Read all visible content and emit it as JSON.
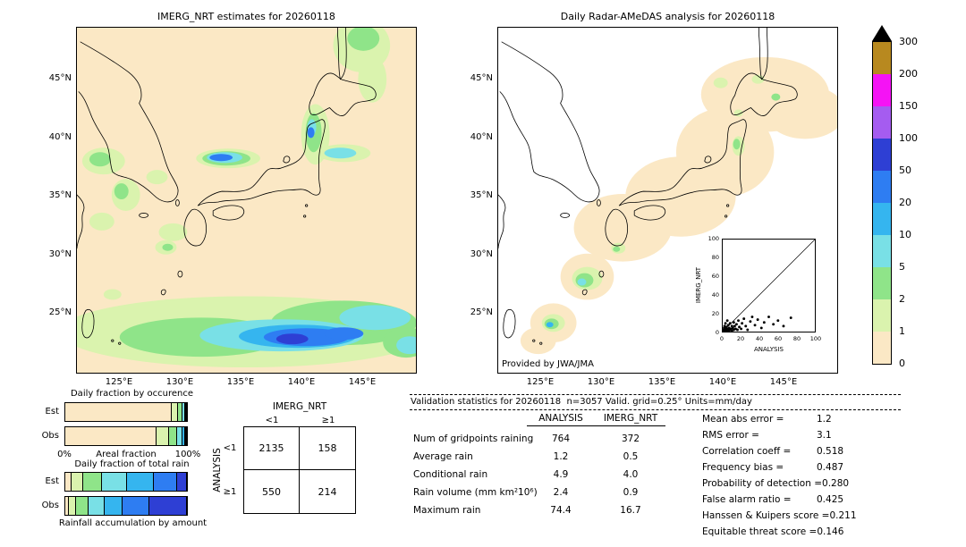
{
  "map_axes": {
    "lat_ticks": [
      "45°N",
      "40°N",
      "35°N",
      "30°N",
      "25°N"
    ],
    "lon_ticks": [
      "125°E",
      "130°E",
      "135°E",
      "140°E",
      "145°E"
    ]
  },
  "colorbar": {
    "units": "mm/day",
    "levels_top_to_bottom": [
      "300",
      "200",
      "150",
      "100",
      "50",
      "20",
      "10",
      "5",
      "2",
      "1",
      "0"
    ],
    "colors_top_to_bottom": [
      "#b8891f",
      "#f513f5",
      "#a55cf0",
      "#2e3fd4",
      "#2e7df2",
      "#35b5ef",
      "#79e0e6",
      "#8fe489",
      "#daf3ae",
      "#fbe8c5"
    ],
    "overflow_color": "#000000"
  },
  "chart_data": [
    {
      "id": "occurrence_fraction",
      "type": "bar",
      "orientation": "horizontal_stacked",
      "title": "Daily fraction by occurence",
      "xlabel": "Areal fraction",
      "x_ticks": [
        "0%",
        "100%"
      ],
      "xlim": [
        0,
        100
      ],
      "bin_labels": [
        "0-1",
        "1-2",
        "2-5",
        "5-10",
        "10-20",
        "20-50",
        ">50"
      ],
      "bin_colors": [
        "#fbe8c5",
        "#daf3ae",
        "#8fe489",
        "#79e0e6",
        "#35b5ef",
        "#2e7df2",
        "#2e3fd4"
      ],
      "rows": [
        {
          "label": "Est",
          "values": [
            87.8,
            5.0,
            3.5,
            2.0,
            1.0,
            0.5,
            0.2
          ]
        },
        {
          "label": "Obs",
          "values": [
            75.0,
            10.0,
            7.0,
            4.0,
            2.2,
            1.3,
            0.5
          ]
        }
      ]
    },
    {
      "id": "total_rain_fraction",
      "type": "bar",
      "orientation": "horizontal_stacked",
      "title": "Daily fraction of total rain",
      "xlabel": "Rainfall accumulation by amount",
      "xlim": [
        0,
        100
      ],
      "bin_labels": [
        "0-1",
        "1-2",
        "2-5",
        "5-10",
        "10-20",
        "20-50",
        ">50"
      ],
      "bin_colors": [
        "#fbe8c5",
        "#daf3ae",
        "#8fe489",
        "#79e0e6",
        "#35b5ef",
        "#2e7df2",
        "#2e3fd4"
      ],
      "rows": [
        {
          "label": "Est",
          "values": [
            5,
            10,
            15,
            21,
            22,
            19,
            8
          ]
        },
        {
          "label": "Obs",
          "values": [
            3,
            6,
            10,
            13,
            15,
            22,
            31
          ]
        }
      ]
    },
    {
      "id": "contingency_table",
      "type": "table",
      "col_axis": "IMERG_NRT",
      "row_axis": "ANALYSIS",
      "col_headers": [
        "<1",
        "≥1"
      ],
      "row_headers": [
        "<1",
        "≥1"
      ],
      "cells": [
        [
          "2135",
          "158"
        ],
        [
          "550",
          "214"
        ]
      ]
    },
    {
      "id": "validation_statistics",
      "type": "table",
      "title": "Validation statistics for 20260118  n=3057 Valid. grid=0.25° Units=mm/day",
      "columns": [
        "ANALYSIS",
        "IMERG_NRT"
      ],
      "rows": [
        {
          "label": "Num of gridpoints raining",
          "values": [
            "764",
            "372"
          ]
        },
        {
          "label": "Average rain",
          "values": [
            "1.2",
            "0.5"
          ]
        },
        {
          "label": "Conditional rain",
          "values": [
            "4.9",
            "4.0"
          ]
        },
        {
          "label": "Rain volume (mm km²10⁶)",
          "values": [
            "2.4",
            "0.9"
          ]
        },
        {
          "label": "Maximum rain",
          "values": [
            "74.4",
            "16.7"
          ]
        }
      ],
      "stats": [
        {
          "label": "Mean abs error =",
          "value": "1.2"
        },
        {
          "label": "RMS error =",
          "value": "3.1"
        },
        {
          "label": "Correlation coeff =",
          "value": "0.518"
        },
        {
          "label": "Frequency bias =",
          "value": "0.487"
        },
        {
          "label": "Probability of detection =",
          "value": "0.280"
        },
        {
          "label": "False alarm ratio =",
          "value": "0.425"
        },
        {
          "label": "Hanssen & Kuipers score =",
          "value": "0.211"
        },
        {
          "label": "Equitable threat score =",
          "value": "0.146"
        }
      ]
    },
    {
      "id": "scatter_inset",
      "type": "scatter",
      "xlabel": "ANALYSIS",
      "ylabel": "IMERG_NRT",
      "xlim": [
        0,
        100
      ],
      "ylim": [
        0,
        100
      ],
      "tick_labels": [
        "0",
        "20",
        "40",
        "60",
        "80",
        "100"
      ],
      "points": [
        [
          0.5,
          0.3
        ],
        [
          0.5,
          1.5
        ],
        [
          1,
          0.2
        ],
        [
          1,
          0.6
        ],
        [
          1,
          2
        ],
        [
          1.5,
          4
        ],
        [
          1.8,
          0.9
        ],
        [
          2,
          0.5
        ],
        [
          2,
          1.5
        ],
        [
          2,
          3.5
        ],
        [
          2,
          6
        ],
        [
          2.5,
          2
        ],
        [
          3,
          1
        ],
        [
          3,
          3
        ],
        [
          3,
          9
        ],
        [
          3.5,
          0.6
        ],
        [
          4,
          0.5
        ],
        [
          4,
          2
        ],
        [
          4,
          3.5
        ],
        [
          4,
          5
        ],
        [
          5,
          0.4
        ],
        [
          5,
          1
        ],
        [
          5,
          3
        ],
        [
          5,
          12
        ],
        [
          6,
          1
        ],
        [
          6,
          2
        ],
        [
          6,
          7
        ],
        [
          7,
          1
        ],
        [
          7,
          4
        ],
        [
          8,
          2
        ],
        [
          8,
          9
        ],
        [
          9,
          3
        ],
        [
          10,
          1
        ],
        [
          10,
          6
        ],
        [
          11,
          4
        ],
        [
          12,
          2
        ],
        [
          12,
          10
        ],
        [
          13,
          6
        ],
        [
          14,
          3
        ],
        [
          15,
          8
        ],
        [
          16,
          2
        ],
        [
          17,
          12
        ],
        [
          18,
          5
        ],
        [
          20,
          3
        ],
        [
          21,
          9
        ],
        [
          23,
          14
        ],
        [
          25,
          6
        ],
        [
          27,
          2
        ],
        [
          30,
          11
        ],
        [
          32,
          16
        ],
        [
          35,
          7
        ],
        [
          38,
          13
        ],
        [
          42,
          4
        ],
        [
          45,
          10
        ],
        [
          50,
          16
        ],
        [
          55,
          8
        ],
        [
          60,
          12
        ],
        [
          66,
          6
        ],
        [
          74,
          15
        ]
      ]
    },
    {
      "id": "map_imerg",
      "type": "heatmap",
      "title": "IMERG_NRT estimates for 20260118",
      "units": "mm/day"
    },
    {
      "id": "map_radar",
      "type": "heatmap",
      "title": "Daily Radar-AMeDAS analysis for 20260118",
      "credit": "Provided by JWA/JMA",
      "units": "mm/day"
    }
  ]
}
